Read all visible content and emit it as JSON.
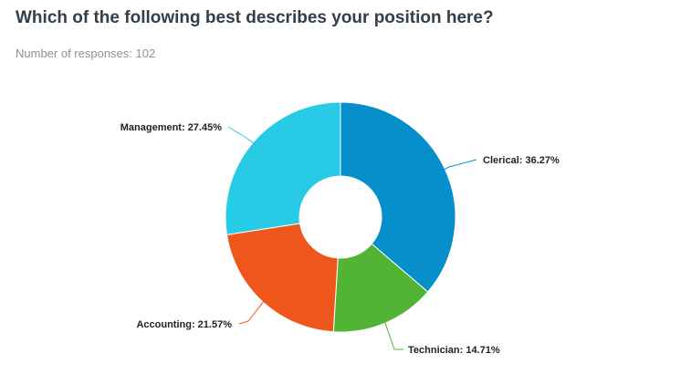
{
  "survey": {
    "question": "Which of the following best describes your position here?",
    "response_count": "Number of responses: 102"
  },
  "chart_data": {
    "type": "pie",
    "variant": "donut",
    "categories": [
      "Clerical",
      "Technician",
      "Accounting",
      "Management"
    ],
    "values": [
      36.27,
      14.71,
      21.57,
      27.45
    ],
    "unit": "%",
    "labels": [
      "Clerical: 36.27%",
      "Technician: 14.71%",
      "Accounting: 21.57%",
      "Management: 27.45%"
    ],
    "colors": [
      "#078fcb",
      "#52b435",
      "#ef561b",
      "#27cbe5"
    ],
    "title": "",
    "legend": "none"
  }
}
